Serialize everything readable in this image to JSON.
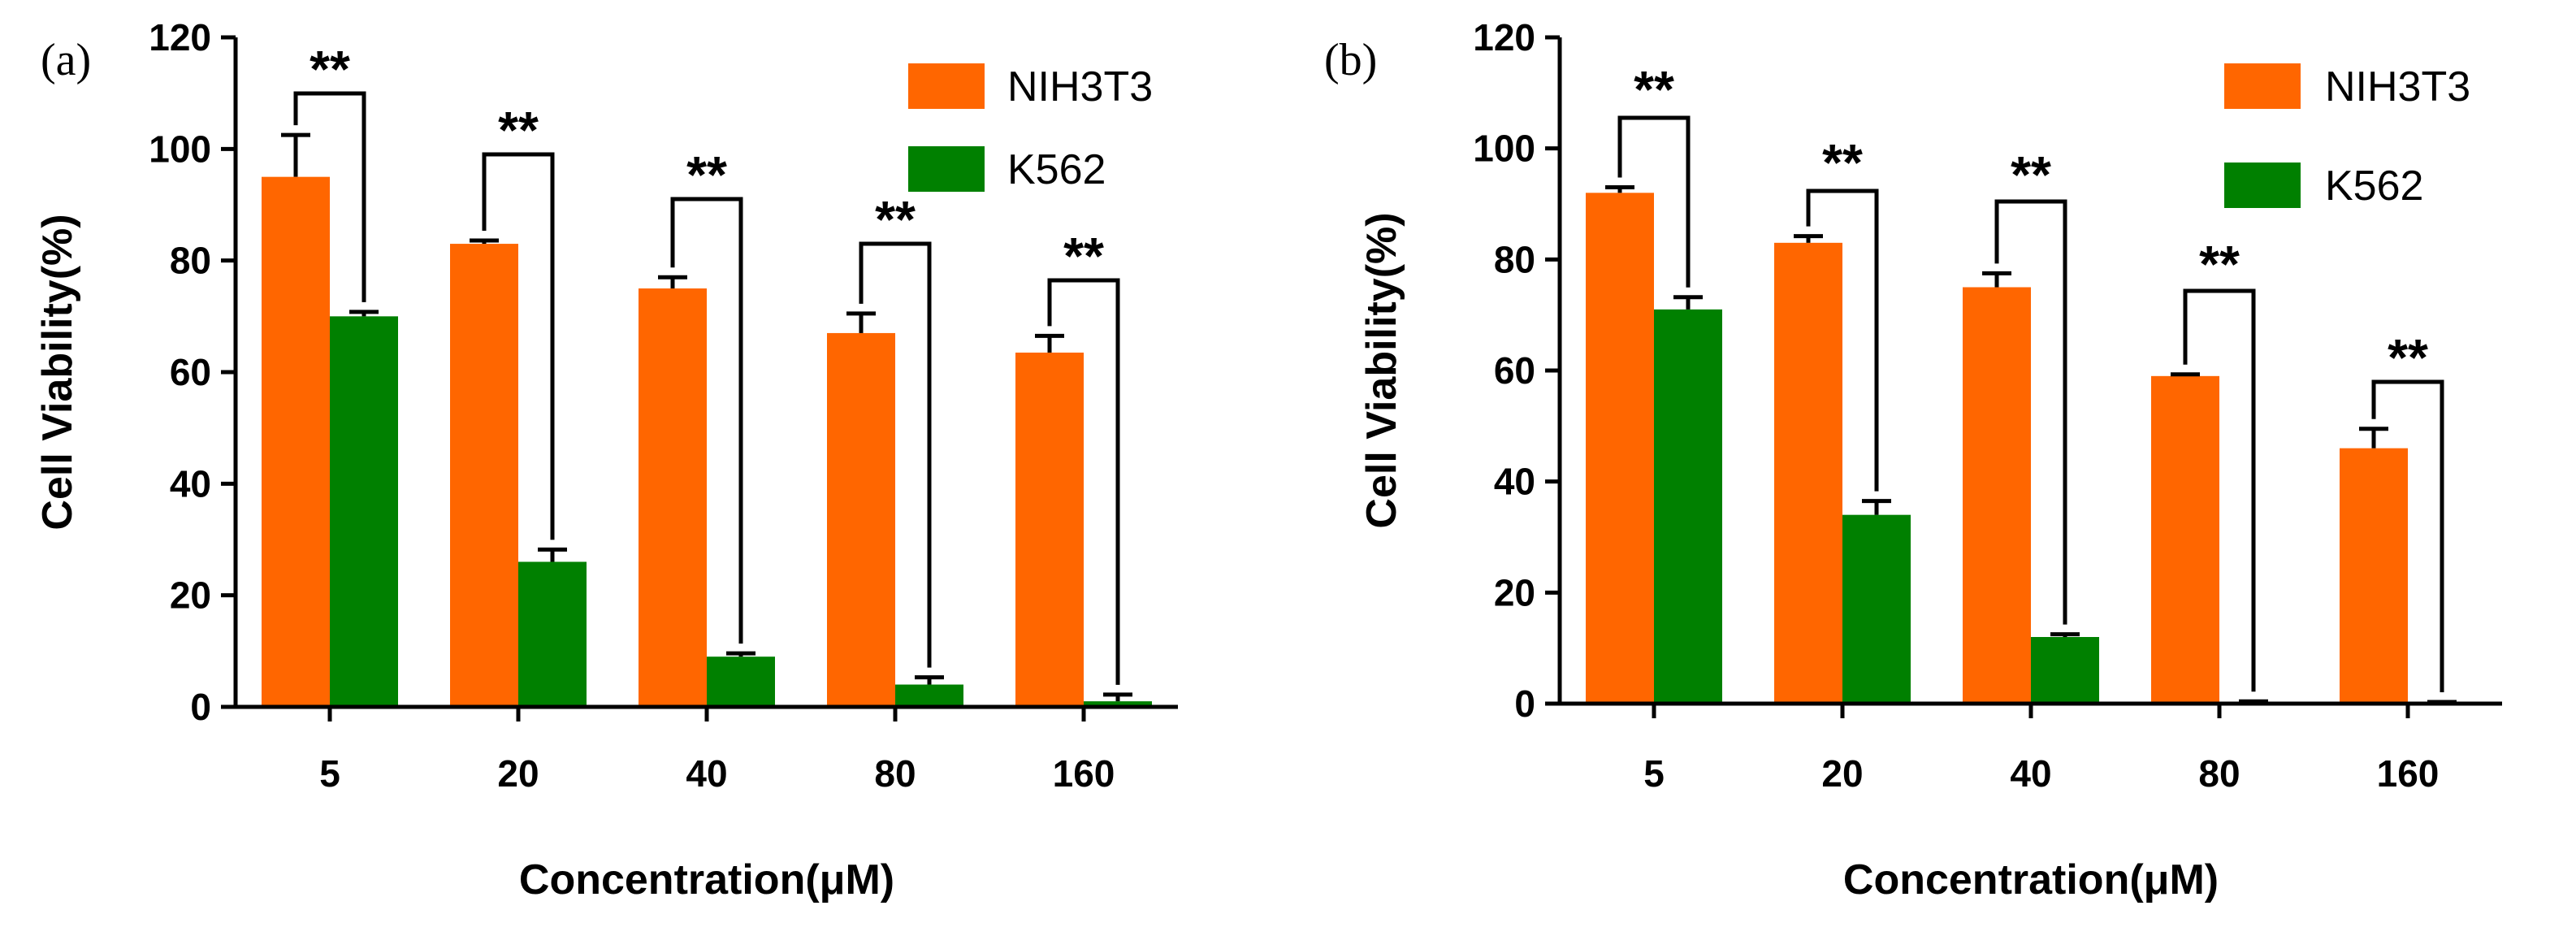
{
  "chart_data": [
    {
      "type": "bar",
      "panel_label": "(a)",
      "title": "",
      "xlabel": "Concentration(μM)",
      "ylabel": "Cell Viability(%)",
      "ylim": [
        0,
        120
      ],
      "yticks": [
        "0",
        "20",
        "40",
        "60",
        "80",
        "100",
        "120"
      ],
      "categories": [
        "5",
        "20",
        "40",
        "80",
        "160"
      ],
      "series": [
        {
          "name": "NIH3T3",
          "color": "#ff6600",
          "values": [
            95,
            83,
            75,
            67,
            63.5
          ],
          "errors": [
            7.5,
            0.6,
            2,
            3.5,
            3
          ]
        },
        {
          "name": "K562",
          "color": "#008000",
          "values": [
            70,
            26,
            9,
            4,
            1
          ],
          "errors": [
            0.8,
            2.2,
            0.6,
            1.3,
            1.2
          ]
        }
      ],
      "significance": [
        "**",
        "**",
        "**",
        "**",
        "**"
      ],
      "legend_position": "top-right"
    },
    {
      "type": "bar",
      "panel_label": "(b)",
      "title": "",
      "xlabel": "Concentration(μM)",
      "ylabel": "Cell Viability(%)",
      "ylim": [
        0,
        120
      ],
      "yticks": [
        "0",
        "20",
        "40",
        "60",
        "80",
        "100",
        "120"
      ],
      "categories": [
        "5",
        "20",
        "40",
        "80",
        "160"
      ],
      "series": [
        {
          "name": "NIH3T3",
          "color": "#ff6600",
          "values": [
            92,
            83,
            75,
            59,
            46
          ],
          "errors": [
            1,
            1.2,
            2.5,
            0.3,
            3.5
          ]
        },
        {
          "name": "K562",
          "color": "#008000",
          "values": [
            71,
            34,
            12,
            0.3,
            0.2
          ],
          "errors": [
            2.2,
            2.5,
            0.5,
            0.1,
            0.1
          ]
        }
      ],
      "significance": [
        "**",
        "**",
        "**",
        "**",
        "**"
      ],
      "legend_position": "top-right"
    }
  ]
}
